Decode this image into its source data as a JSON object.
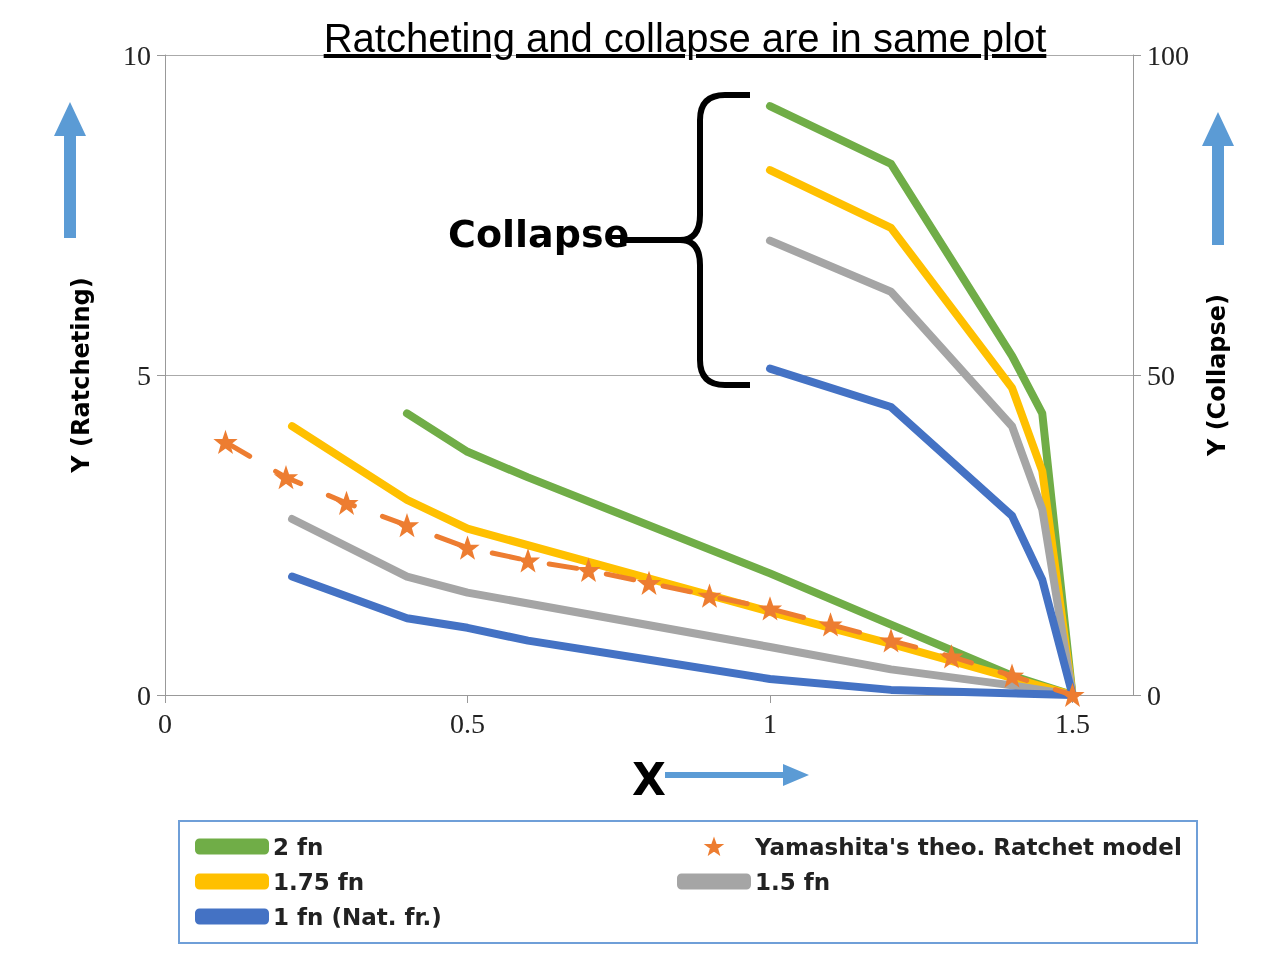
{
  "chart_data": {
    "type": "line",
    "title": "Ratcheting and collapse are in same plot",
    "xlabel": "X",
    "ylabel": "Y (Ratcheting)",
    "y2label": "Y (Collapse)",
    "xlim": [
      0,
      1.6
    ],
    "xticks": [
      0,
      0.5,
      1,
      1.5
    ],
    "ylim": [
      0,
      10
    ],
    "yticks": [
      0,
      5,
      10
    ],
    "y2lim": [
      0,
      100
    ],
    "y2ticks": [
      0,
      50,
      100
    ],
    "grid": "y",
    "legend": "bottom",
    "marker": "none",
    "annotations": [
      "Collapse"
    ],
    "series": [
      {
        "name": "2 fn",
        "color": "#70ad47",
        "x": [
          0.4,
          0.5,
          0.6,
          1,
          1.2,
          1.4,
          1.5
        ],
        "values": [
          4.4,
          3.8,
          3.4,
          1.9,
          1.1,
          0.3,
          0
        ]
      },
      {
        "name": "Yamashita's theo. Ratchet model",
        "color": "#ed7d31",
        "marker": "star",
        "line_style": "dashed",
        "x": [
          0.1,
          0.2,
          0.3,
          0.4,
          0.5,
          0.6,
          0.7,
          0.8,
          0.9,
          1,
          1.1,
          1.2,
          1.3,
          1.4,
          1.5
        ],
        "values": [
          3.95,
          3.4,
          3.0,
          2.65,
          2.3,
          2.1,
          1.95,
          1.75,
          1.55,
          1.35,
          1.1,
          0.85,
          0.6,
          0.3,
          0
        ]
      },
      {
        "name": "1.75 fn",
        "color": "#ffc000",
        "x": [
          0.21,
          0.4,
          0.5,
          1,
          1.2,
          1.5
        ],
        "values": [
          4.2,
          3.05,
          2.6,
          1.3,
          0.8,
          0
        ]
      },
      {
        "name": "1.5 fn",
        "color": "#a5a5a5",
        "x": [
          0.21,
          0.4,
          0.5,
          1,
          1.2,
          1.4,
          1.5
        ],
        "values": [
          2.75,
          1.85,
          1.6,
          0.75,
          0.4,
          0.15,
          0
        ]
      },
      {
        "name": "1 fn (Nat. fr.)",
        "color": "#4472c4",
        "x": [
          0.21,
          0.4,
          0.5,
          0.6,
          0.8,
          1,
          1.2,
          1.5
        ],
        "values": [
          1.85,
          1.2,
          1.05,
          0.85,
          0.55,
          0.25,
          0.08,
          0
        ]
      },
      {
        "color": "#70ad47",
        "axis": "y2",
        "x": [
          1,
          1.2,
          1.4,
          1.45,
          1.5
        ],
        "values": [
          92,
          83,
          53,
          44,
          0
        ]
      },
      {
        "color": "#ffc000",
        "axis": "y2",
        "x": [
          1,
          1.2,
          1.4,
          1.45,
          1.5
        ],
        "values": [
          82,
          73,
          48,
          35,
          0
        ]
      },
      {
        "color": "#a5a5a5",
        "axis": "y2",
        "x": [
          1,
          1.2,
          1.4,
          1.45,
          1.5
        ],
        "values": [
          71,
          63,
          42,
          29,
          0
        ]
      },
      {
        "color": "#4472c4",
        "axis": "y2",
        "x": [
          1,
          1.2,
          1.4,
          1.45,
          1.5
        ],
        "values": [
          51,
          45,
          28,
          18,
          0
        ]
      }
    ]
  }
}
